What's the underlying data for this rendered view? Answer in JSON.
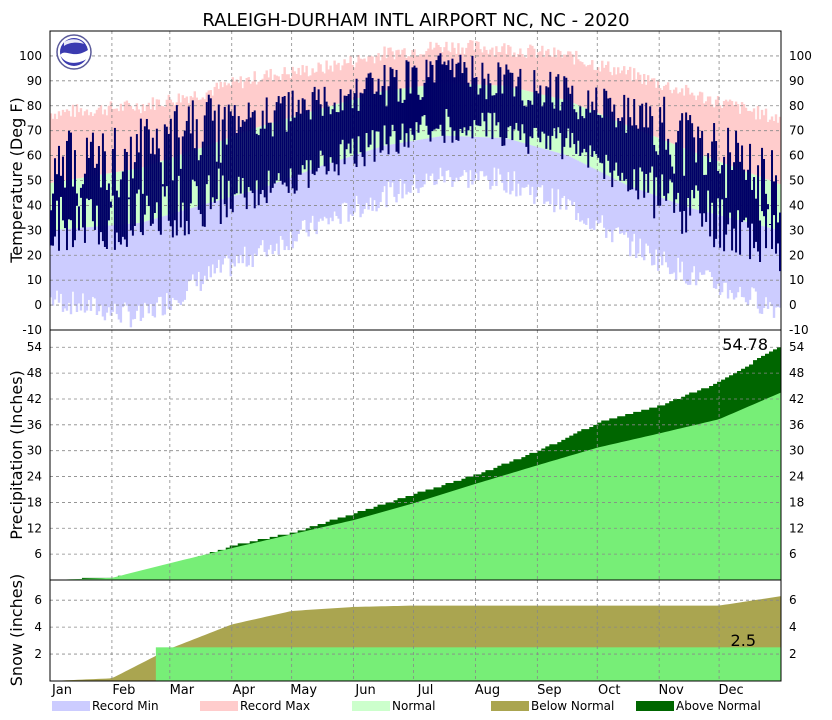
{
  "chart_data": {
    "type": "area",
    "title": "RALEIGH-DURHAM INTL AIRPORT NC, NC - 2020",
    "months": [
      "Jan",
      "Feb",
      "Mar",
      "Apr",
      "May",
      "Jun",
      "Jul",
      "Aug",
      "Sep",
      "Oct",
      "Nov",
      "Dec"
    ],
    "legend": [
      {
        "name": "Record Min",
        "color": "#ccccff"
      },
      {
        "name": "Record Max",
        "color": "#ffcccc"
      },
      {
        "name": "Normal",
        "color": "#ccffcc"
      },
      {
        "name": "Below Normal",
        "color": "#aaa550"
      },
      {
        "name": "Above Normal",
        "color": "#006600"
      }
    ],
    "panels": {
      "temperature": {
        "ylabel": "Temperature (Deg F)",
        "ylim": [
          -10,
          110
        ],
        "ticks": [
          -10,
          0,
          10,
          20,
          30,
          40,
          50,
          60,
          70,
          80,
          90,
          100
        ],
        "series_colors": {
          "record_max": "#ffcccc",
          "record_min": "#ccccff",
          "normal": "#ccffcc",
          "observed": "#000066"
        },
        "record_max_approx": [
          78,
          80,
          85,
          92,
          95,
          101,
          104,
          103,
          100,
          93,
          85,
          78
        ],
        "normal_high": [
          51,
          55,
          63,
          72,
          79,
          86,
          89,
          88,
          82,
          72,
          62,
          53
        ],
        "normal_low": [
          31,
          33,
          40,
          47,
          56,
          64,
          68,
          67,
          60,
          48,
          39,
          33
        ],
        "record_min_approx": [
          0,
          -5,
          10,
          22,
          33,
          44,
          52,
          50,
          40,
          25,
          12,
          3
        ],
        "observed_high": [
          55,
          60,
          70,
          75,
          80,
          88,
          93,
          90,
          84,
          76,
          66,
          52
        ],
        "observed_low": [
          32,
          36,
          42,
          46,
          56,
          66,
          72,
          70,
          64,
          50,
          40,
          30
        ]
      },
      "precipitation": {
        "ylabel": "Precipitation (Inches)",
        "ylim": [
          0,
          58
        ],
        "ticks": [
          6,
          12,
          18,
          24,
          30,
          36,
          42,
          48,
          54
        ],
        "total_label": "54.78",
        "observed_cumulative": [
          0.5,
          3.2,
          8.0,
          11.0,
          15.5,
          20.0,
          24.5,
          30.0,
          36.5,
          40.5,
          46.0,
          54.78
        ],
        "normal_cumulative": [
          0.5,
          3.9,
          7.4,
          10.6,
          13.9,
          17.8,
          22.3,
          26.6,
          30.7,
          34.0,
          37.3,
          43.5
        ]
      },
      "snow": {
        "ylabel": "Snow (inches)",
        "ylim": [
          0,
          7.5
        ],
        "ticks": [
          2,
          4,
          6
        ],
        "total_label": "2.5",
        "observed_total": 2.5,
        "normal_cumulative": [
          0.2,
          2.4,
          4.2,
          5.2,
          5.5,
          5.6,
          5.6,
          5.6,
          5.6,
          5.6,
          5.6,
          6.3
        ]
      }
    }
  }
}
